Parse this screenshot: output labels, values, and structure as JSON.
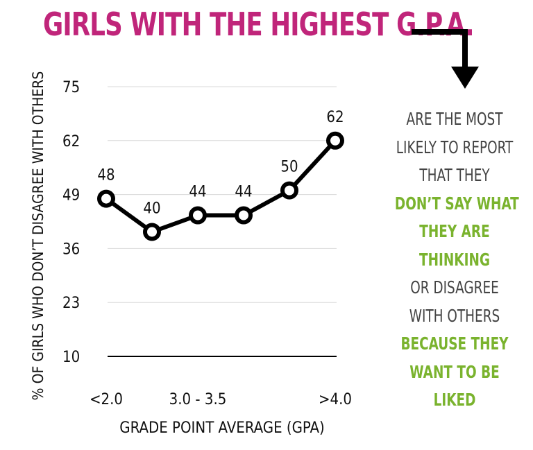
{
  "title": "GIRLS WITH THE HIGHEST G.P.A.",
  "colors": {
    "title": "#c0257a",
    "accent": "#7ab32e",
    "text": "#444444",
    "line": "#000000",
    "grid": "#d9d9d9"
  },
  "side_text": [
    {
      "text": "ARE THE MOST",
      "style": "plain"
    },
    {
      "text": "LIKELY TO REPORT",
      "style": "plain"
    },
    {
      "text": "THAT THEY",
      "style": "plain"
    },
    {
      "text": "DON’T SAY WHAT",
      "style": "accent"
    },
    {
      "text": "THEY ARE",
      "style": "accent"
    },
    {
      "text": "THINKING",
      "style": "accent"
    },
    {
      "text": "OR DISAGREE",
      "style": "plain"
    },
    {
      "text": "WITH OTHERS",
      "style": "plain"
    },
    {
      "text": "BECAUSE THEY",
      "style": "accent"
    },
    {
      "text": "WANT TO BE",
      "style": "accent"
    },
    {
      "text": "LIKED",
      "style": "accent"
    }
  ],
  "chart_data": {
    "type": "line",
    "values": [
      48,
      40,
      44,
      44,
      50,
      62
    ],
    "data_labels": [
      "48",
      "40",
      "44",
      "44",
      "50",
      "62"
    ],
    "x_tick_labels": [
      "<2.0",
      "",
      "3.0 - 3.5",
      "",
      "",
      ">4.0"
    ],
    "y_ticks": [
      10,
      23,
      36,
      49,
      62,
      75
    ],
    "ylim": [
      10,
      75
    ],
    "xlabel": "GRADE POINT AVERAGE (GPA)",
    "ylabel": "% OF GIRLS WHO DON’T DISAGREE WITH OTHERS",
    "grid": true
  }
}
